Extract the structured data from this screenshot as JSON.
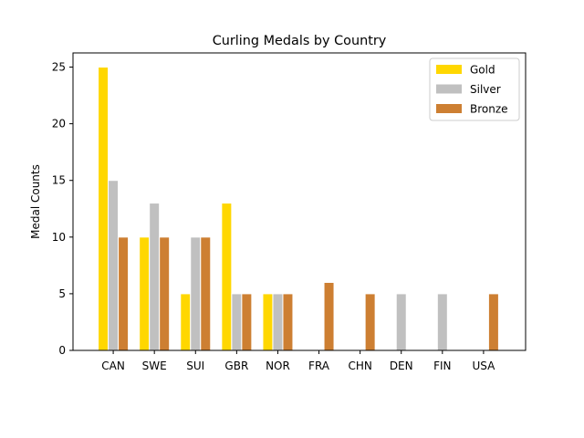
{
  "chart_data": {
    "type": "bar",
    "title": "Curling Medals by Country",
    "xlabel": "",
    "ylabel": "Medal Counts",
    "categories": [
      "CAN",
      "SWE",
      "SUI",
      "GBR",
      "NOR",
      "FRA",
      "CHN",
      "DEN",
      "FIN",
      "USA"
    ],
    "series": [
      {
        "name": "Gold",
        "color": "#FFD700",
        "values": [
          25,
          10,
          5,
          13,
          5,
          0,
          0,
          0,
          0,
          0
        ]
      },
      {
        "name": "Silver",
        "color": "#C0C0C0",
        "values": [
          15,
          13,
          10,
          5,
          5,
          0,
          0,
          5,
          5,
          0
        ]
      },
      {
        "name": "Bronze",
        "color": "#CD7F32",
        "values": [
          10,
          10,
          10,
          5,
          5,
          6,
          5,
          0,
          0,
          5
        ]
      }
    ],
    "ylim": [
      0,
      26.25
    ],
    "yticks": [
      0,
      5,
      10,
      15,
      20,
      25
    ],
    "legend_position": "top-right",
    "grid": false
  }
}
